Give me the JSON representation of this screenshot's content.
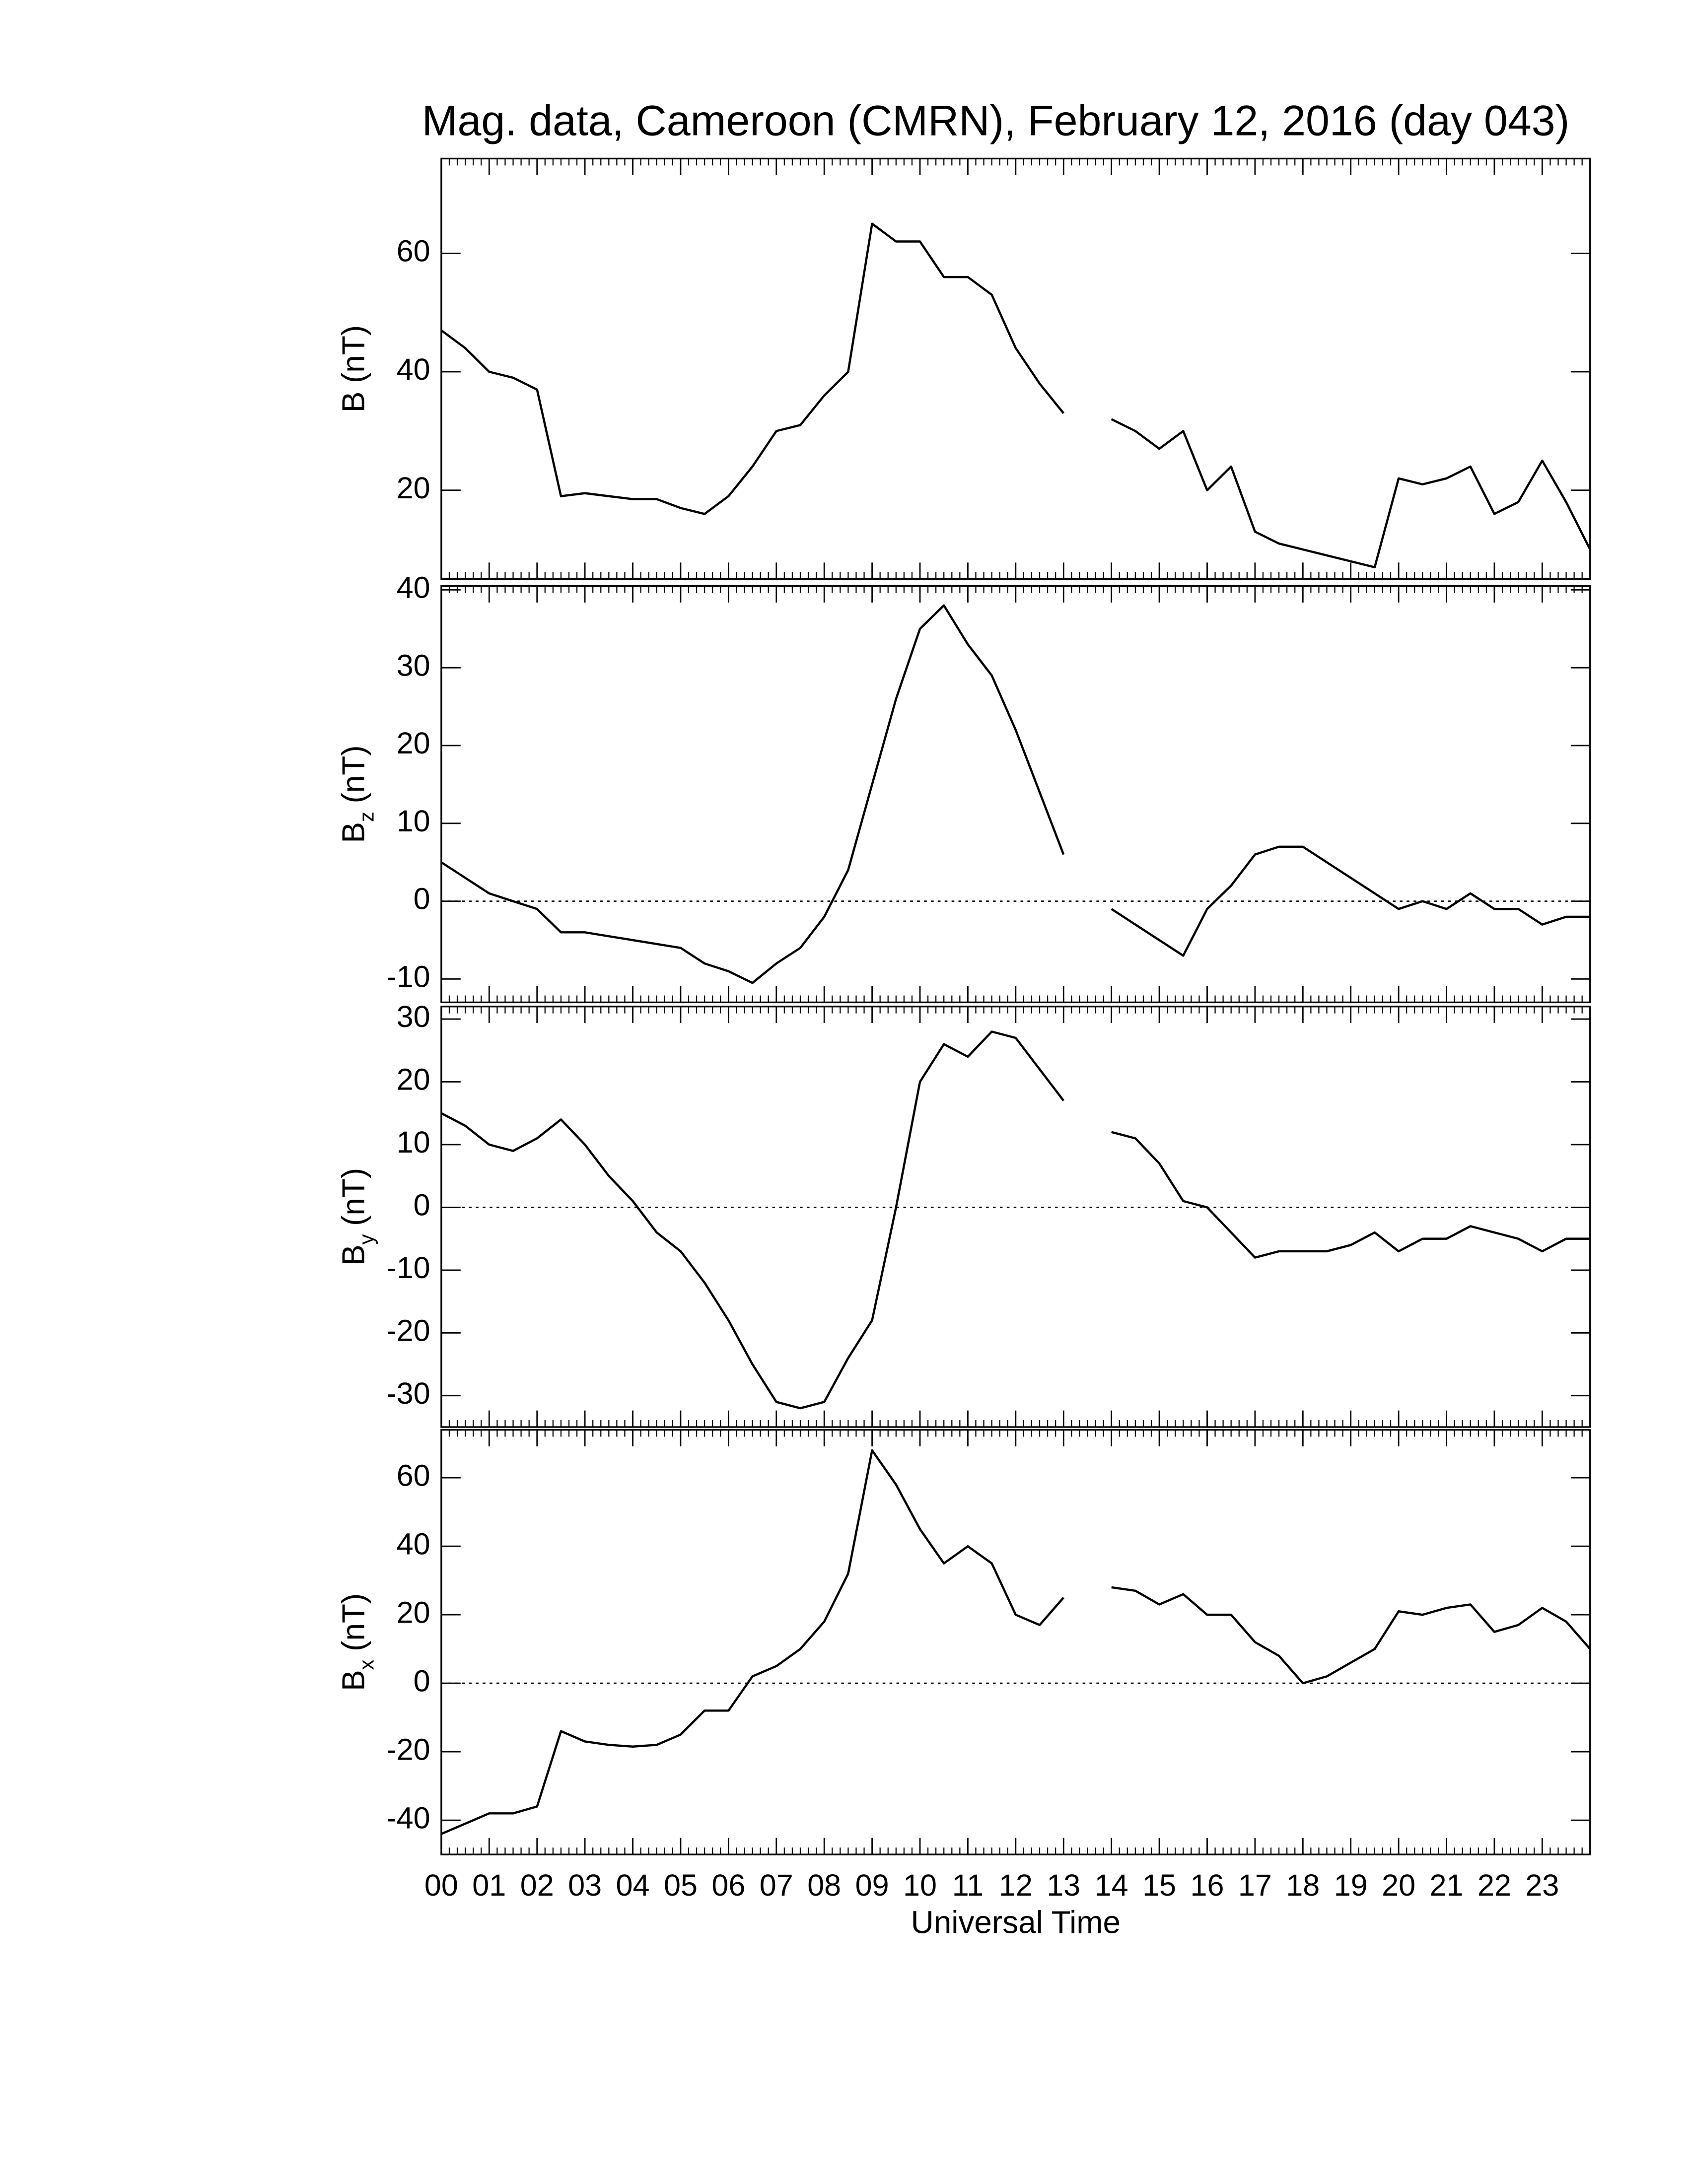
{
  "chart_data": [
    {
      "type": "line",
      "title": "Mag. data, Cameroon (CMRN), February 12, 2016 (day 043)",
      "ylabel": {
        "symbol": "B",
        "unit": "(nT)"
      },
      "x": [
        0,
        0.5,
        1,
        1.5,
        2,
        2.5,
        3,
        3.5,
        4,
        4.5,
        5,
        5.5,
        6,
        6.5,
        7,
        7.5,
        8,
        8.5,
        9,
        9.5,
        10,
        10.5,
        11,
        11.5,
        12,
        12.5,
        13,
        13.5,
        14,
        14.5,
        15,
        15.5,
        16,
        16.5,
        17,
        17.5,
        18,
        18.5,
        19,
        19.5,
        20,
        20.5,
        21,
        21.5,
        22,
        22.5,
        23,
        23.5,
        24
      ],
      "series": [
        {
          "color": "#000000",
          "values": [
            47,
            44,
            40,
            39,
            37,
            19,
            19.5,
            19,
            18.5,
            18.5,
            17,
            16,
            19,
            24,
            30,
            31,
            36,
            40,
            65,
            62,
            62,
            56,
            56,
            53,
            44,
            38,
            33,
            null,
            32,
            30,
            27,
            30,
            20,
            24,
            13,
            11,
            10,
            9,
            8,
            7,
            22,
            21,
            22,
            24,
            16,
            18,
            25,
            18,
            10
          ]
        }
      ],
      "xlim": [
        0,
        24
      ],
      "ylim": [
        5,
        76
      ],
      "yticks": [
        20,
        40,
        60
      ]
    },
    {
      "type": "line",
      "ylabel": {
        "symbol": "B",
        "subscript": "z",
        "unit": "(nT)"
      },
      "x": [
        0,
        0.5,
        1,
        1.5,
        2,
        2.5,
        3,
        3.5,
        4,
        4.5,
        5,
        5.5,
        6,
        6.5,
        7,
        7.5,
        8,
        8.5,
        9,
        9.5,
        10,
        10.5,
        11,
        11.5,
        12,
        12.5,
        13,
        13.5,
        14,
        14.5,
        15,
        15.5,
        16,
        16.5,
        17,
        17.5,
        18,
        18.5,
        19,
        19.5,
        20,
        20.5,
        21,
        21.5,
        22,
        22.5,
        23,
        23.5,
        24
      ],
      "series": [
        {
          "color": "#000000",
          "values": [
            5,
            3,
            1,
            0,
            -1,
            -4,
            -4,
            -4.5,
            -5,
            -5.5,
            -6,
            -8,
            -9,
            -10.5,
            -8,
            -6,
            -2,
            4,
            15,
            26,
            35,
            38,
            33,
            29,
            22,
            14,
            6,
            null,
            -1,
            -3,
            -5,
            -7,
            -1,
            2,
            6,
            7,
            7,
            5,
            3,
            1,
            -1,
            0,
            -1,
            1,
            -1,
            -1,
            -3,
            -2,
            -2
          ]
        }
      ],
      "xlim": [
        0,
        24
      ],
      "ylim": [
        -13,
        40.5
      ],
      "yticks": [
        -10,
        0,
        10,
        20,
        30,
        40
      ],
      "hline": 0
    },
    {
      "type": "line",
      "ylabel": {
        "symbol": "B",
        "subscript": "y",
        "unit": "(nT)"
      },
      "x": [
        0,
        0.5,
        1,
        1.5,
        2,
        2.5,
        3,
        3.5,
        4,
        4.5,
        5,
        5.5,
        6,
        6.5,
        7,
        7.5,
        8,
        8.5,
        9,
        9.5,
        10,
        10.5,
        11,
        11.5,
        12,
        12.5,
        13,
        13.5,
        14,
        14.5,
        15,
        15.5,
        16,
        16.5,
        17,
        17.5,
        18,
        18.5,
        19,
        19.5,
        20,
        20.5,
        21,
        21.5,
        22,
        22.5,
        23,
        23.5,
        24
      ],
      "series": [
        {
          "color": "#000000",
          "values": [
            15,
            13,
            10,
            9,
            11,
            14,
            10,
            5,
            1,
            -4,
            -7,
            -12,
            -18,
            -25,
            -31,
            -32,
            -31,
            -24,
            -18,
            0,
            20,
            26,
            24,
            28,
            27,
            22,
            17,
            null,
            12,
            11,
            7,
            1,
            0,
            -4,
            -8,
            -7,
            -7,
            -7,
            -6,
            -4,
            -7,
            -5,
            -5,
            -3,
            -4,
            -5,
            -7,
            -5,
            -5
          ]
        }
      ],
      "xlim": [
        0,
        24
      ],
      "ylim": [
        -35,
        32
      ],
      "yticks": [
        -30,
        -20,
        -10,
        0,
        10,
        20,
        30
      ],
      "hline": 0
    },
    {
      "type": "line",
      "ylabel": {
        "symbol": "B",
        "subscript": "x",
        "unit": "(nT)"
      },
      "xlabel": "Universal Time",
      "x": [
        0,
        0.5,
        1,
        1.5,
        2,
        2.5,
        3,
        3.5,
        4,
        4.5,
        5,
        5.5,
        6,
        6.5,
        7,
        7.5,
        8,
        8.5,
        9,
        9.5,
        10,
        10.5,
        11,
        11.5,
        12,
        12.5,
        13,
        13.5,
        14,
        14.5,
        15,
        15.5,
        16,
        16.5,
        17,
        17.5,
        18,
        18.5,
        19,
        19.5,
        20,
        20.5,
        21,
        21.5,
        22,
        22.5,
        23,
        23.5,
        24
      ],
      "series": [
        {
          "color": "#000000",
          "values": [
            -44,
            -41,
            -38,
            -38,
            -36,
            -14,
            -17,
            -18,
            -18.5,
            -18,
            -15,
            -8,
            -8,
            2,
            5,
            10,
            18,
            32,
            68,
            58,
            45,
            35,
            40,
            35,
            20,
            17,
            25,
            null,
            28,
            27,
            23,
            26,
            20,
            20,
            12,
            8,
            0,
            2,
            6,
            10,
            21,
            20,
            22,
            23,
            15,
            17,
            22,
            18,
            10
          ]
        }
      ],
      "xlim": [
        0,
        24
      ],
      "ylim": [
        -50,
        74
      ],
      "yticks": [
        -40,
        -20,
        0,
        20,
        40,
        60
      ],
      "hline": 0,
      "xticks": [
        {
          "value": 0,
          "label": "00"
        },
        {
          "value": 1,
          "label": "01"
        },
        {
          "value": 2,
          "label": "02"
        },
        {
          "value": 3,
          "label": "03"
        },
        {
          "value": 4,
          "label": "04"
        },
        {
          "value": 5,
          "label": "05"
        },
        {
          "value": 6,
          "label": "06"
        },
        {
          "value": 7,
          "label": "07"
        },
        {
          "value": 8,
          "label": "08"
        },
        {
          "value": 9,
          "label": "09"
        },
        {
          "value": 10,
          "label": "10"
        },
        {
          "value": 11,
          "label": "11"
        },
        {
          "value": 12,
          "label": "12"
        },
        {
          "value": 13,
          "label": "13"
        },
        {
          "value": 14,
          "label": "14"
        },
        {
          "value": 15,
          "label": "15"
        },
        {
          "value": 16,
          "label": "16"
        },
        {
          "value": 17,
          "label": "17"
        },
        {
          "value": 18,
          "label": "18"
        },
        {
          "value": 19,
          "label": "19"
        },
        {
          "value": 20,
          "label": "20"
        },
        {
          "value": 21,
          "label": "21"
        },
        {
          "value": 22,
          "label": "22"
        },
        {
          "value": 23,
          "label": "23"
        }
      ]
    }
  ]
}
